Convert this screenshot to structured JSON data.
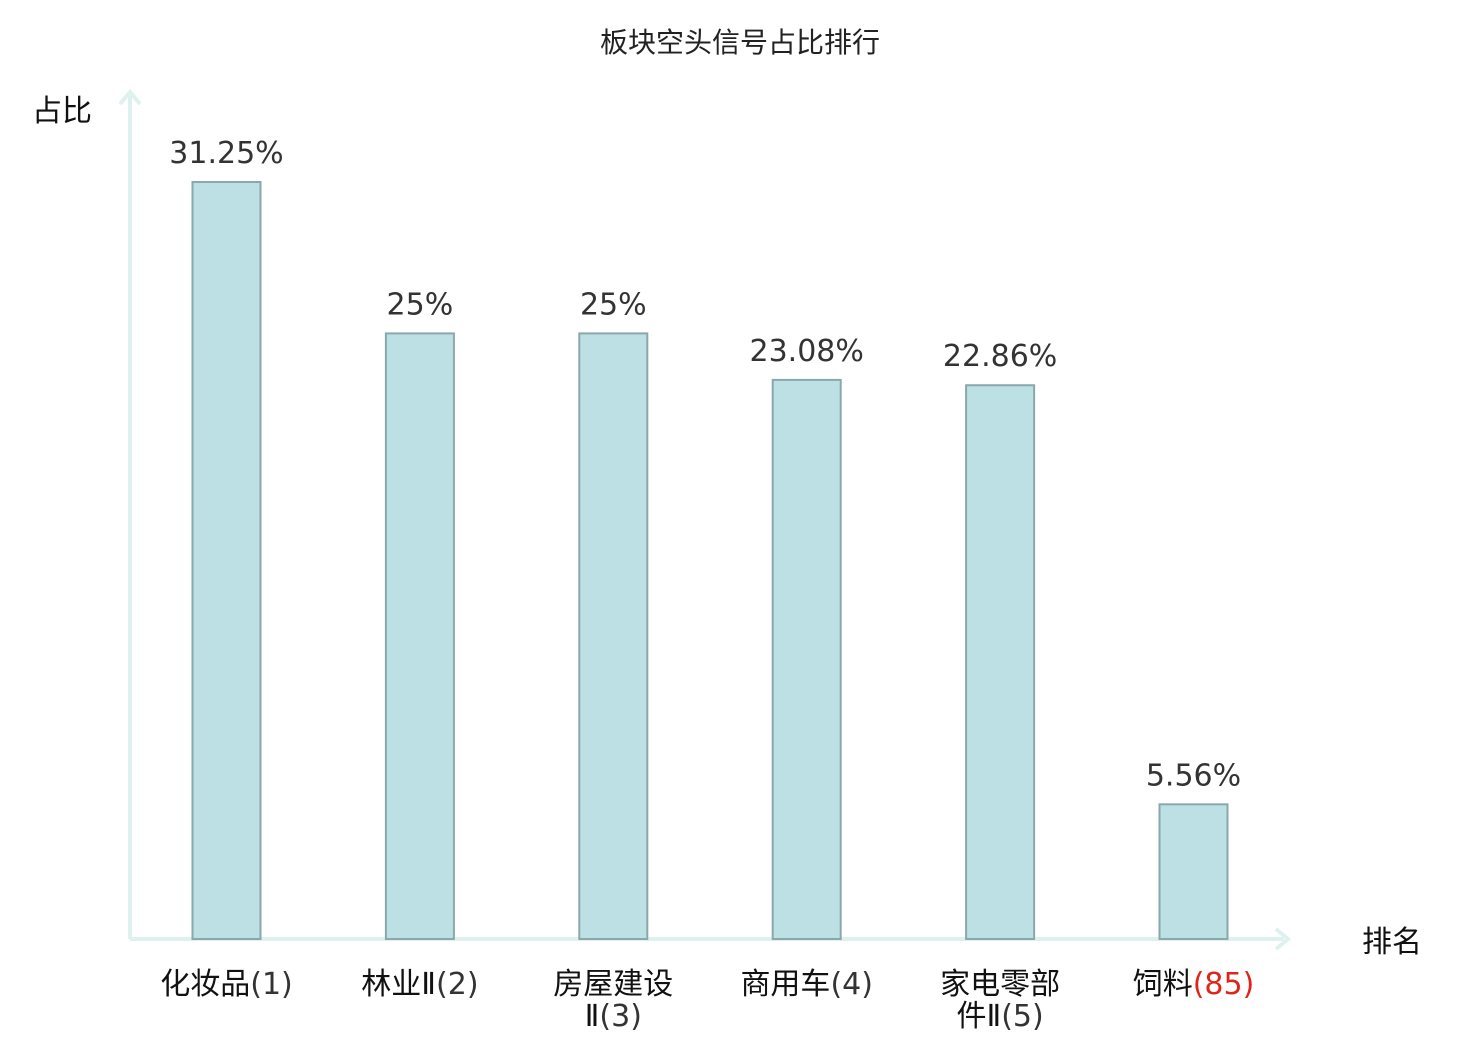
{
  "chart_data": {
    "type": "bar",
    "title": "板块空头信号占比排行",
    "ylabel": "占比",
    "xlabel": "排名",
    "ylim": [
      0,
      34
    ],
    "grid": false,
    "categories": [
      {
        "name": [
          "化妆品"
        ],
        "rank": "(1)",
        "highlight": false
      },
      {
        "name": [
          "林业Ⅱ"
        ],
        "rank": "(2)",
        "highlight": false
      },
      {
        "name": [
          "房屋建设",
          "Ⅱ"
        ],
        "rank": "(3)",
        "highlight": false
      },
      {
        "name": [
          "商用车"
        ],
        "rank": "(4)",
        "highlight": false
      },
      {
        "name": [
          "家电零部",
          "件Ⅱ"
        ],
        "rank": "(5)",
        "highlight": false
      },
      {
        "name": [
          "饲料"
        ],
        "rank": "(85)",
        "highlight": true
      }
    ],
    "values": [
      31.25,
      25,
      25,
      23.08,
      22.86,
      5.56
    ],
    "value_labels": [
      "31.25%",
      "25%",
      "25%",
      "23.08%",
      "22.86%",
      "5.56%"
    ]
  },
  "colors": {
    "bar_fill": "#bce0e3",
    "bar_stroke": "#8aa8ab",
    "axis": "#dff1ef",
    "highlight_text": "#e0241b",
    "text": "#111111",
    "value_text": "#333333"
  }
}
